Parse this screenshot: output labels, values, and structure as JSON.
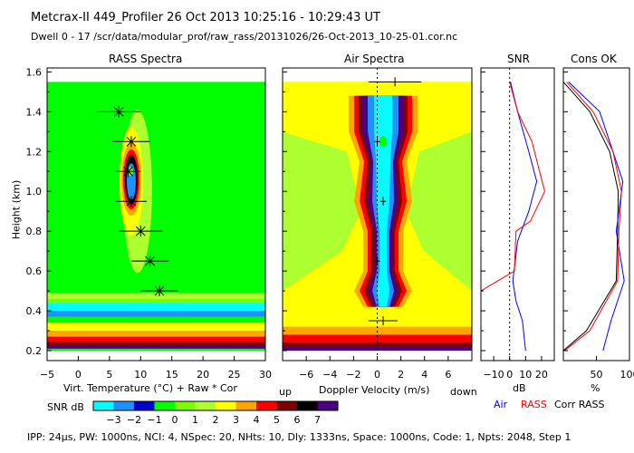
{
  "header": {
    "line1": "Metcrax-II  449_Profiler  26 Oct 2013  10:25:16 - 10:29:43 UT",
    "line2": "Dwell  0 - 17   /scr/data/modular_prof/raw_rass/20131026/26-Oct-2013_10-25-01.cor.nc"
  },
  "footer": "IPP: 24μs,  PW: 1000ns,  NCI: 4,  NSpec: 20,  NHts: 10,  Dly: 1333ns,  Space: 1000ns,  Code: 1,  Npts: 2048,  Step 1",
  "colorbar": {
    "label": "SNR dB",
    "ticks": [
      "−3",
      "−2",
      "−1",
      "0",
      "1",
      "2",
      "3",
      "4",
      "5",
      "6",
      "7"
    ],
    "colors": [
      "#00ffff",
      "#1e90ff",
      "#0000cd",
      "#00ff00",
      "#7cfc00",
      "#adff2f",
      "#ffff00",
      "#ffa500",
      "#ff0000",
      "#800000",
      "#000000",
      "#4b0082"
    ]
  },
  "chart_data": [
    {
      "type": "heatmap",
      "title": "RASS Spectra",
      "ylabel": "Height (km)",
      "xlabel": "Virt. Temperature (°C)  + Raw  * Cor",
      "ylim": [
        0.15,
        1.62
      ],
      "xlim": [
        -5,
        30
      ],
      "xticks": [
        "−5",
        "0",
        "5",
        "10",
        "15",
        "20",
        "25",
        "30"
      ],
      "yticks": [
        "0.2",
        "0.4",
        "0.6",
        "0.8",
        "1.0",
        "1.2",
        "1.4",
        "1.6"
      ],
      "points": [
        {
          "height": 1.4,
          "temp": 6.5,
          "err": 3.5
        },
        {
          "height": 1.25,
          "temp": 8.5,
          "err": 3.0
        },
        {
          "height": 1.1,
          "temp": 8.0,
          "err": 2.0
        },
        {
          "height": 0.95,
          "temp": 8.5,
          "err": 2.5
        },
        {
          "height": 0.8,
          "temp": 10.0,
          "err": 3.5
        },
        {
          "height": 0.65,
          "temp": 11.5,
          "err": 3.0
        },
        {
          "height": 0.5,
          "temp": 13.0,
          "err": 3.0
        }
      ]
    },
    {
      "type": "heatmap",
      "title": "Air Spectra",
      "xlabel": "Doppler Velocity (m/s)",
      "x_left_label": "up",
      "x_right_label": "down",
      "xlim": [
        -8,
        8
      ],
      "xticks": [
        "−6",
        "−4",
        "−2",
        "0",
        "2",
        "4",
        "6"
      ],
      "points": [
        {
          "height": 1.55,
          "vel": 1.5,
          "err": 2.0
        },
        {
          "height": 1.25,
          "vel": 0.0,
          "err": 0.0
        },
        {
          "height": 0.95,
          "vel": 0.5,
          "err": 0.0
        },
        {
          "height": 0.65,
          "vel": 0.0,
          "err": 0.0
        },
        {
          "height": 0.35,
          "vel": 0.5,
          "err": 1.0
        }
      ]
    },
    {
      "type": "line",
      "title": "SNR",
      "xlabel": "dB",
      "xlim": [
        -18,
        28
      ],
      "xticks": [
        "−10",
        "0",
        "10",
        "20"
      ],
      "series": [
        {
          "name": "Air",
          "color": "#0000ff",
          "points": [
            [
              0.5,
              1.55
            ],
            [
              5,
              1.4
            ],
            [
              12,
              1.2
            ],
            [
              17,
              1.05
            ],
            [
              12,
              0.9
            ],
            [
              5,
              0.75
            ],
            [
              2,
              0.55
            ],
            [
              4,
              0.45
            ],
            [
              8,
              0.35
            ],
            [
              10,
              0.2
            ]
          ]
        },
        {
          "name": "RASS",
          "color": "#ff0000",
          "points": [
            [
              0,
              1.55
            ],
            [
              5,
              1.4
            ],
            [
              14,
              1.25
            ],
            [
              22,
              1.0
            ],
            [
              13,
              0.85
            ],
            [
              4,
              0.8
            ],
            [
              3,
              0.6
            ],
            [
              -18,
              0.5
            ]
          ]
        }
      ]
    },
    {
      "type": "line",
      "title": "Cons OK",
      "xlabel": "%",
      "xlim": [
        0,
        100
      ],
      "xticks": [
        "50",
        "100"
      ],
      "series": [
        {
          "name": "Corr RASS",
          "color": "#000000",
          "points": [
            [
              0,
              1.55
            ],
            [
              40,
              1.4
            ],
            [
              70,
              1.2
            ],
            [
              83,
              1.0
            ],
            [
              82,
              0.8
            ],
            [
              80,
              0.55
            ],
            [
              35,
              0.3
            ],
            [
              0,
              0.2
            ]
          ]
        },
        {
          "name": "Air",
          "color": "#0000ff",
          "points": [
            [
              8,
              1.55
            ],
            [
              55,
              1.4
            ],
            [
              90,
              1.05
            ],
            [
              80,
              0.8
            ],
            [
              92,
              0.55
            ],
            [
              72,
              0.35
            ],
            [
              60,
              0.2
            ]
          ]
        },
        {
          "name": "RASS",
          "color": "#ff0000",
          "points": [
            [
              5,
              1.55
            ],
            [
              45,
              1.4
            ],
            [
              75,
              1.2
            ],
            [
              88,
              1.0
            ],
            [
              84,
              0.8
            ],
            [
              82,
              0.55
            ],
            [
              40,
              0.3
            ],
            [
              2,
              0.2
            ]
          ]
        }
      ]
    }
  ],
  "legend": {
    "air": "Air",
    "rass": "RASS",
    "corr": "Corr RASS"
  }
}
